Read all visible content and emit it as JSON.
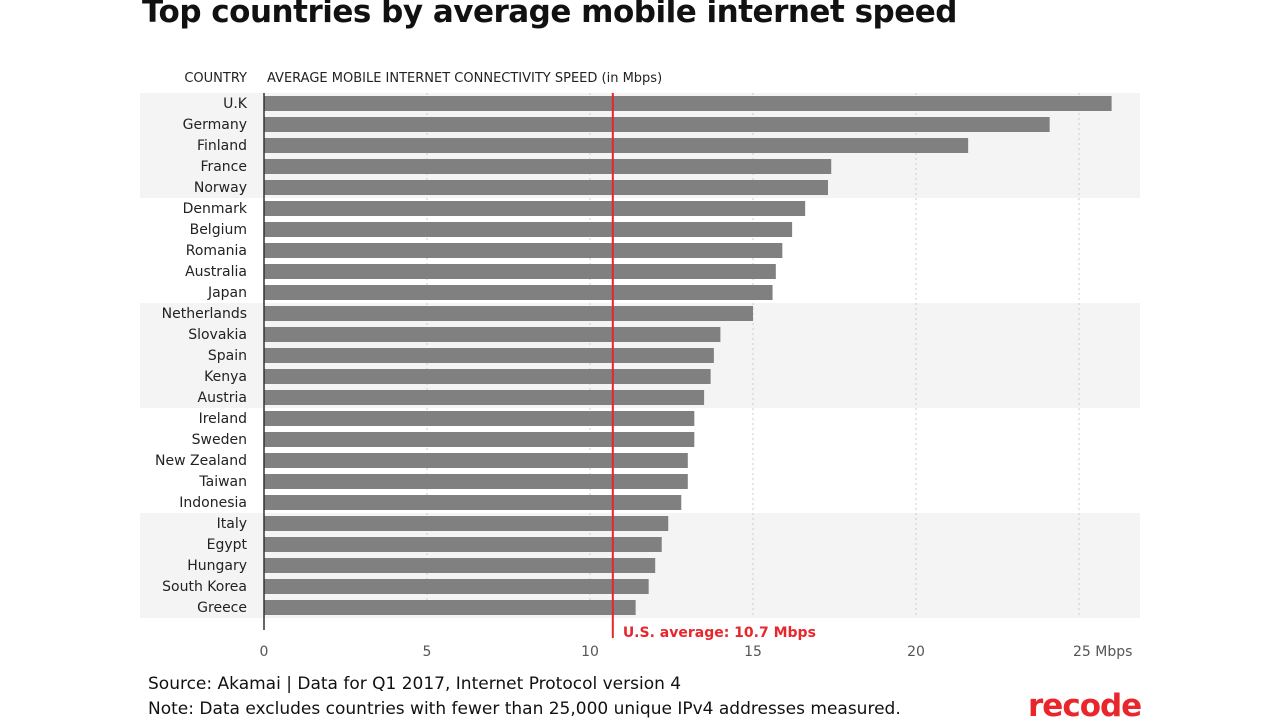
{
  "page": {
    "title": "Top countries by average mobile internet speed",
    "source": "Source: Akamai | Data for Q1 2017, Internet Protocol version 4",
    "note": "Note: Data excludes countries with fewer than 25,000 unique IPv4 addresses measured.",
    "logo": "recode"
  },
  "colors": {
    "bar": "#808080",
    "band": "#f4f4f4",
    "reference": "#e8262c",
    "grid": "#cccccc",
    "text": "#222222",
    "axis": "#555555",
    "logo": "#e8262c"
  },
  "chart_data": {
    "type": "bar",
    "orientation": "horizontal",
    "title": "Top countries by average mobile internet speed",
    "category_header": "COUNTRY",
    "value_header": "AVERAGE MOBILE INTERNET CONNECTIVITY SPEED (in Mbps)",
    "categories": [
      "U.K",
      "Germany",
      "Finland",
      "France",
      "Norway",
      "Denmark",
      "Belgium",
      "Romania",
      "Australia",
      "Japan",
      "Netherlands",
      "Slovakia",
      "Spain",
      "Kenya",
      "Austria",
      "Ireland",
      "Sweden",
      "New Zealand",
      "Taiwan",
      "Indonesia",
      "Italy",
      "Egypt",
      "Hungary",
      "South Korea",
      "Greece"
    ],
    "values": [
      26.0,
      24.1,
      21.6,
      17.4,
      17.3,
      16.6,
      16.2,
      15.9,
      15.7,
      15.6,
      15.0,
      14.0,
      13.8,
      13.7,
      13.5,
      13.2,
      13.2,
      13.0,
      13.0,
      12.8,
      12.4,
      12.2,
      12.0,
      11.8,
      11.4
    ],
    "xlim": [
      0,
      27
    ],
    "ticks": [
      0,
      5,
      10,
      15,
      20,
      25
    ],
    "tick_labels": [
      "0",
      "5",
      "10",
      "15",
      "20",
      "25 Mbps"
    ],
    "band_size": 5,
    "reference_line": {
      "value": 10.7,
      "label": "U.S. average: 10.7 Mbps"
    }
  }
}
